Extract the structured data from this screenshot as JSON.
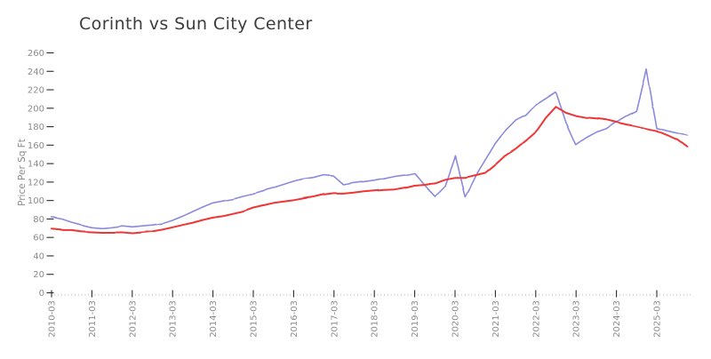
{
  "page": {
    "background": "#ffffff"
  },
  "chart_data": {
    "type": "line",
    "title": "Corinth vs Sun City Center",
    "xlabel": "",
    "ylabel": "Price Per Sq Ft",
    "style": "xkcd-sketch",
    "grid": false,
    "legend": "none",
    "ylim": [
      0,
      260
    ],
    "ytick_step": 20,
    "x_tick_labels": [
      "2010-03",
      "2011-03",
      "2012-03",
      "2013-03",
      "2014-03",
      "2015-03",
      "2016-03",
      "2017-03",
      "2018-03",
      "2019-03",
      "2020-03",
      "2021-03",
      "2022-03",
      "2023-03",
      "2024-03",
      "2025-03"
    ],
    "x": [
      "2010-03",
      "2010-06",
      "2010-09",
      "2010-12",
      "2011-03",
      "2011-06",
      "2011-09",
      "2011-12",
      "2012-03",
      "2012-06",
      "2012-09",
      "2012-12",
      "2013-03",
      "2013-06",
      "2013-09",
      "2013-12",
      "2014-03",
      "2014-06",
      "2014-09",
      "2014-12",
      "2015-03",
      "2015-06",
      "2015-09",
      "2015-12",
      "2016-03",
      "2016-06",
      "2016-09",
      "2016-12",
      "2017-03",
      "2017-06",
      "2017-09",
      "2017-12",
      "2018-03",
      "2018-06",
      "2018-09",
      "2018-12",
      "2019-03",
      "2019-06",
      "2019-09",
      "2019-12",
      "2020-03",
      "2020-06",
      "2020-09",
      "2020-12",
      "2021-03",
      "2021-06",
      "2021-09",
      "2021-12",
      "2022-03",
      "2022-06",
      "2022-09",
      "2022-12",
      "2023-03",
      "2023-06",
      "2023-09",
      "2023-12",
      "2024-03",
      "2024-06",
      "2024-09",
      "2024-12",
      "2025-03",
      "2025-06",
      "2025-09",
      "2025-12"
    ],
    "series": [
      {
        "name": "Corinth",
        "color": "#8a8ade",
        "values": [
          82,
          80,
          76.5,
          73.5,
          71,
          70,
          71,
          72.5,
          71.5,
          72.5,
          73.5,
          75,
          78.5,
          83,
          88,
          93,
          97.5,
          99.5,
          101.5,
          104.5,
          107,
          110.5,
          113.5,
          117,
          120.5,
          123,
          124.5,
          127.5,
          126.5,
          117,
          119,
          120.5,
          122,
          124,
          126.5,
          128,
          130,
          117,
          105,
          116,
          148,
          104,
          126,
          144,
          162,
          176,
          187,
          192.5,
          204,
          211,
          218,
          185,
          160.5,
          168,
          174,
          178,
          185,
          191.5,
          197,
          242,
          178.5,
          175.5,
          173,
          170.5
        ]
      },
      {
        "name": "Sun City Center",
        "color": "#ef3434",
        "values": [
          69,
          68,
          68,
          66.5,
          66,
          65.5,
          65.5,
          65.5,
          64.5,
          65.5,
          66.5,
          68.5,
          71,
          73.5,
          76,
          79,
          81.5,
          83,
          85.5,
          88,
          92,
          94.5,
          97,
          98.5,
          100,
          102,
          103.5,
          106,
          107.5,
          107.5,
          108.5,
          110,
          111,
          112,
          112.5,
          114.5,
          117,
          118,
          119,
          123,
          125,
          125,
          127.5,
          130,
          139,
          149,
          156,
          165,
          174.5,
          190,
          202,
          195.5,
          192,
          190,
          189,
          187.5,
          185,
          182.5,
          180.5,
          178,
          175.5,
          171,
          166,
          158
        ]
      }
    ],
    "axis_color": "#2a2a2a",
    "tick_label_color": "#8c8c8c"
  }
}
